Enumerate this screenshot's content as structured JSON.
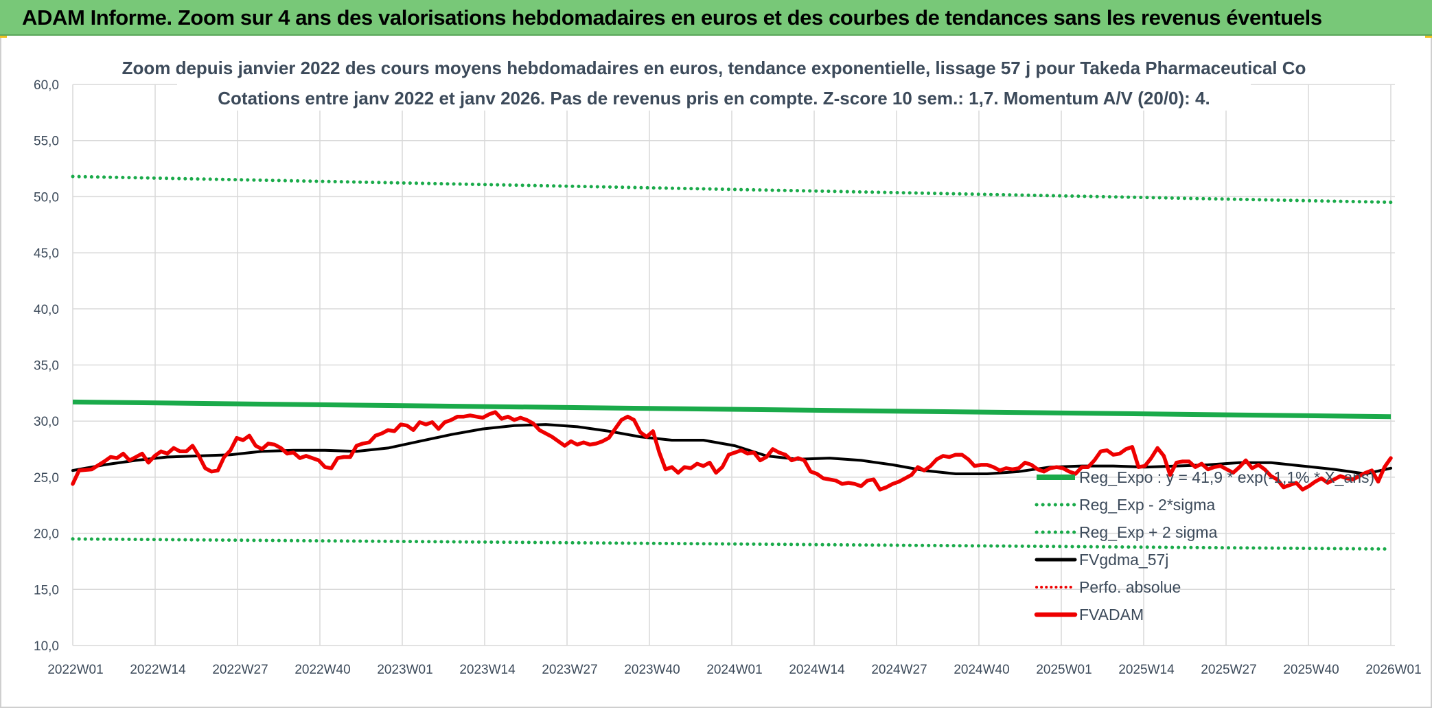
{
  "banner": {
    "title": "ADAM Informe. Zoom sur 4 ans des valorisations hebdomadaires en euros et des courbes de tendances sans les revenus éventuels"
  },
  "colors": {
    "banner_bg": "#78c878",
    "green": "#1aaa4a",
    "red": "#ee0000",
    "black": "#000000",
    "axis_text": "#3c4a5a"
  },
  "chart_data": {
    "type": "line",
    "title_line1": "Zoom depuis janvier 2022 des cours moyens hebdomadaires en euros, tendance exponentielle, lissage 57 j pour Takeda Pharmaceutical Co",
    "title_line2": "Cotations entre janv 2022 et janv 2026. Pas de revenus pris en compte. Z-score 10 sem.: 1,7. Momentum A/V (20/0): 4.",
    "xlabel": "",
    "ylabel": "",
    "ylim": [
      10,
      60
    ],
    "grid": true,
    "legend_position": "right",
    "y_ticks": [
      "60,0",
      "55,0",
      "50,0",
      "45,0",
      "40,0",
      "35,0",
      "30,0",
      "25,0",
      "20,0",
      "15,0",
      "10,0"
    ],
    "x_ticks": [
      "2022W01",
      "2022W14",
      "2022W27",
      "2022W40",
      "2023W01",
      "2023W14",
      "2023W27",
      "2023W40",
      "2024W01",
      "2024W14",
      "2024W27",
      "2024W40",
      "2025W01",
      "2025W14",
      "2025W27",
      "2025W40",
      "2026W01"
    ],
    "series": [
      {
        "name": "Reg_Expo : y = 41,9 * exp(-1,1% * X_ans)",
        "style": "solid-green",
        "points": [
          [
            0,
            31.7
          ],
          [
            209,
            30.4
          ]
        ]
      },
      {
        "name": "Reg_Exp - 2*sigma",
        "style": "dotted-green",
        "points": [
          [
            0,
            19.5
          ],
          [
            209,
            18.6
          ]
        ]
      },
      {
        "name": "Reg_Exp + 2 sigma",
        "style": "dotted-green",
        "points": [
          [
            0,
            51.8
          ],
          [
            209,
            49.5
          ]
        ]
      },
      {
        "name": "FVgdma_57j",
        "style": "solid-black",
        "points": [
          [
            0,
            25.6
          ],
          [
            5,
            26.1
          ],
          [
            10,
            26.5
          ],
          [
            15,
            26.8
          ],
          [
            20,
            26.9
          ],
          [
            25,
            27.0
          ],
          [
            30,
            27.3
          ],
          [
            35,
            27.4
          ],
          [
            40,
            27.4
          ],
          [
            45,
            27.3
          ],
          [
            50,
            27.6
          ],
          [
            55,
            28.2
          ],
          [
            60,
            28.8
          ],
          [
            65,
            29.3
          ],
          [
            70,
            29.6
          ],
          [
            75,
            29.7
          ],
          [
            80,
            29.5
          ],
          [
            85,
            29.1
          ],
          [
            90,
            28.6
          ],
          [
            95,
            28.3
          ],
          [
            100,
            28.3
          ],
          [
            105,
            27.8
          ],
          [
            110,
            26.9
          ],
          [
            115,
            26.6
          ],
          [
            120,
            26.7
          ],
          [
            125,
            26.5
          ],
          [
            130,
            26.1
          ],
          [
            135,
            25.6
          ],
          [
            140,
            25.3
          ],
          [
            145,
            25.3
          ],
          [
            150,
            25.5
          ],
          [
            155,
            25.9
          ],
          [
            160,
            26.0
          ],
          [
            165,
            26.0
          ],
          [
            170,
            25.9
          ],
          [
            175,
            26.0
          ],
          [
            180,
            26.1
          ],
          [
            185,
            26.3
          ],
          [
            190,
            26.3
          ],
          [
            195,
            26.0
          ],
          [
            200,
            25.7
          ],
          [
            205,
            25.3
          ],
          [
            209,
            25.8
          ]
        ]
      },
      {
        "name": "Perfo. absolue",
        "style": "dotted-red",
        "points": []
      },
      {
        "name": "FVADAM",
        "style": "solid-red",
        "points": [
          [
            0,
            24.4
          ],
          [
            1,
            25.6
          ],
          [
            3,
            25.7
          ],
          [
            5,
            26.4
          ],
          [
            6,
            26.8
          ],
          [
            7,
            26.7
          ],
          [
            8,
            27.1
          ],
          [
            9,
            26.5
          ],
          [
            10,
            26.8
          ],
          [
            11,
            27.1
          ],
          [
            12,
            26.3
          ],
          [
            13,
            26.9
          ],
          [
            14,
            27.3
          ],
          [
            15,
            27.1
          ],
          [
            16,
            27.6
          ],
          [
            17,
            27.3
          ],
          [
            18,
            27.3
          ],
          [
            19,
            27.8
          ],
          [
            20,
            26.9
          ],
          [
            21,
            25.8
          ],
          [
            22,
            25.5
          ],
          [
            23,
            25.6
          ],
          [
            24,
            26.8
          ],
          [
            25,
            27.4
          ],
          [
            26,
            28.5
          ],
          [
            27,
            28.3
          ],
          [
            28,
            28.7
          ],
          [
            29,
            27.8
          ],
          [
            30,
            27.5
          ],
          [
            31,
            28.0
          ],
          [
            32,
            27.9
          ],
          [
            33,
            27.6
          ],
          [
            34,
            27.1
          ],
          [
            35,
            27.2
          ],
          [
            36,
            26.7
          ],
          [
            37,
            26.9
          ],
          [
            38,
            26.7
          ],
          [
            39,
            26.5
          ],
          [
            40,
            25.9
          ],
          [
            41,
            25.8
          ],
          [
            42,
            26.7
          ],
          [
            43,
            26.8
          ],
          [
            44,
            26.8
          ],
          [
            45,
            27.8
          ],
          [
            46,
            28.0
          ],
          [
            47,
            28.1
          ],
          [
            48,
            28.7
          ],
          [
            49,
            28.9
          ],
          [
            50,
            29.2
          ],
          [
            51,
            29.1
          ],
          [
            52,
            29.7
          ],
          [
            53,
            29.6
          ],
          [
            54,
            29.2
          ],
          [
            55,
            29.9
          ],
          [
            56,
            29.7
          ],
          [
            57,
            29.9
          ],
          [
            58,
            29.3
          ],
          [
            59,
            29.9
          ],
          [
            60,
            30.1
          ],
          [
            61,
            30.4
          ],
          [
            62,
            30.4
          ],
          [
            63,
            30.5
          ],
          [
            64,
            30.4
          ],
          [
            65,
            30.3
          ],
          [
            66,
            30.6
          ],
          [
            67,
            30.8
          ],
          [
            68,
            30.2
          ],
          [
            69,
            30.4
          ],
          [
            70,
            30.1
          ],
          [
            71,
            30.3
          ],
          [
            72,
            30.1
          ],
          [
            73,
            29.8
          ],
          [
            74,
            29.2
          ],
          [
            75,
            28.9
          ],
          [
            76,
            28.6
          ],
          [
            77,
            28.2
          ],
          [
            78,
            27.8
          ],
          [
            79,
            28.2
          ],
          [
            80,
            27.9
          ],
          [
            81,
            28.1
          ],
          [
            82,
            27.9
          ],
          [
            83,
            28.0
          ],
          [
            84,
            28.2
          ],
          [
            85,
            28.5
          ],
          [
            86,
            29.3
          ],
          [
            87,
            30.1
          ],
          [
            88,
            30.4
          ],
          [
            89,
            30.1
          ],
          [
            90,
            29.0
          ],
          [
            91,
            28.6
          ],
          [
            92,
            29.1
          ],
          [
            93,
            27.2
          ],
          [
            94,
            25.7
          ],
          [
            95,
            25.9
          ],
          [
            96,
            25.4
          ],
          [
            97,
            25.9
          ],
          [
            98,
            25.8
          ],
          [
            99,
            26.2
          ],
          [
            100,
            26.0
          ],
          [
            101,
            26.3
          ],
          [
            102,
            25.4
          ],
          [
            103,
            25.9
          ],
          [
            104,
            27.0
          ],
          [
            105,
            27.2
          ],
          [
            106,
            27.4
          ],
          [
            107,
            27.1
          ],
          [
            108,
            27.2
          ],
          [
            109,
            26.5
          ],
          [
            110,
            26.8
          ],
          [
            111,
            27.5
          ],
          [
            112,
            27.2
          ],
          [
            113,
            27.0
          ],
          [
            114,
            26.5
          ],
          [
            115,
            26.7
          ],
          [
            116,
            26.5
          ],
          [
            117,
            25.5
          ],
          [
            118,
            25.3
          ],
          [
            119,
            24.9
          ],
          [
            120,
            24.8
          ],
          [
            121,
            24.7
          ],
          [
            122,
            24.4
          ],
          [
            123,
            24.5
          ],
          [
            124,
            24.4
          ],
          [
            125,
            24.2
          ],
          [
            126,
            24.7
          ],
          [
            127,
            24.8
          ],
          [
            128,
            23.9
          ],
          [
            129,
            24.1
          ],
          [
            130,
            24.4
          ],
          [
            131,
            24.6
          ],
          [
            132,
            24.9
          ],
          [
            133,
            25.2
          ],
          [
            134,
            25.9
          ],
          [
            135,
            25.6
          ],
          [
            136,
            26.0
          ],
          [
            137,
            26.6
          ],
          [
            138,
            26.9
          ],
          [
            139,
            26.8
          ],
          [
            140,
            27.0
          ],
          [
            141,
            27.0
          ],
          [
            142,
            26.6
          ],
          [
            143,
            26.0
          ],
          [
            144,
            26.1
          ],
          [
            145,
            26.1
          ],
          [
            146,
            25.9
          ],
          [
            147,
            25.6
          ],
          [
            148,
            25.8
          ],
          [
            149,
            25.7
          ],
          [
            150,
            25.8
          ],
          [
            151,
            26.3
          ],
          [
            152,
            26.1
          ],
          [
            153,
            25.7
          ],
          [
            154,
            25.5
          ],
          [
            155,
            25.8
          ],
          [
            156,
            25.9
          ],
          [
            157,
            25.8
          ],
          [
            158,
            25.5
          ],
          [
            159,
            25.3
          ],
          [
            160,
            25.9
          ],
          [
            161,
            25.9
          ],
          [
            162,
            26.5
          ],
          [
            163,
            27.3
          ],
          [
            164,
            27.4
          ],
          [
            165,
            27.0
          ],
          [
            166,
            27.1
          ],
          [
            167,
            27.5
          ],
          [
            168,
            27.7
          ],
          [
            169,
            25.9
          ],
          [
            170,
            26.0
          ],
          [
            171,
            26.7
          ],
          [
            172,
            27.6
          ],
          [
            173,
            26.9
          ],
          [
            174,
            25.2
          ],
          [
            175,
            26.3
          ],
          [
            176,
            26.4
          ],
          [
            177,
            26.4
          ],
          [
            178,
            25.9
          ],
          [
            179,
            26.2
          ],
          [
            180,
            25.7
          ],
          [
            181,
            25.9
          ],
          [
            182,
            26.0
          ],
          [
            183,
            25.7
          ],
          [
            184,
            25.4
          ],
          [
            185,
            25.9
          ],
          [
            186,
            26.5
          ],
          [
            187,
            25.8
          ],
          [
            188,
            26.1
          ],
          [
            189,
            25.7
          ],
          [
            190,
            25.1
          ],
          [
            191,
            24.8
          ],
          [
            192,
            24.1
          ],
          [
            193,
            24.3
          ],
          [
            194,
            24.5
          ],
          [
            195,
            23.9
          ],
          [
            196,
            24.2
          ],
          [
            197,
            24.6
          ],
          [
            198,
            24.9
          ],
          [
            199,
            24.5
          ],
          [
            200,
            24.8
          ],
          [
            201,
            25.1
          ],
          [
            202,
            24.9
          ],
          [
            203,
            24.8
          ],
          [
            204,
            25.1
          ],
          [
            205,
            25.4
          ],
          [
            206,
            25.6
          ],
          [
            207,
            24.6
          ],
          [
            208,
            25.9
          ],
          [
            209,
            26.7
          ]
        ]
      }
    ]
  }
}
